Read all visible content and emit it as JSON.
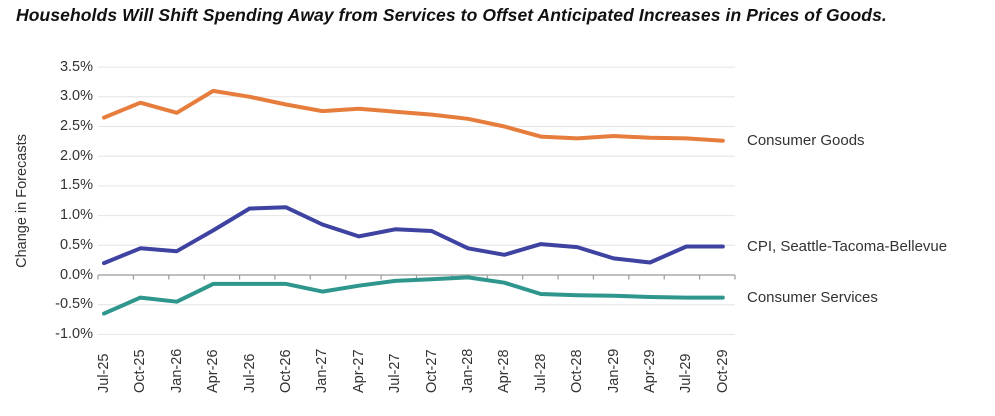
{
  "title": "Households Will Shift Spending Away from Services to Offset Anticipated Increases in Prices of Goods.",
  "chart_data": {
    "type": "line",
    "title": "Households Will Shift Spending Away from Services to Offset Anticipated Increases in Prices of Goods.",
    "xlabel": "",
    "ylabel": "Change in Forecasts",
    "ylim": [
      -1.0,
      3.5
    ],
    "ytick_step": 0.5,
    "ytick_labels": [
      "3.5%",
      "3.0%",
      "2.5%",
      "2.0%",
      "1.5%",
      "1.0%",
      "0.5%",
      "0.0%",
      "-0.5%",
      "-1.0%"
    ],
    "grid": true,
    "legend_position": "right-of-line-ends",
    "categories": [
      "Jul-25",
      "Oct-25",
      "Jan-26",
      "Apr-26",
      "Jul-26",
      "Oct-26",
      "Jan-27",
      "Apr-27",
      "Jul-27",
      "Oct-27",
      "Jan-28",
      "Apr-28",
      "Jul-28",
      "Oct-28",
      "Jan-29",
      "Apr-29",
      "Jul-29",
      "Oct-29"
    ],
    "series": [
      {
        "name": "Consumer Goods",
        "color": "#E67D3C",
        "values": [
          2.65,
          2.9,
          2.73,
          3.1,
          3.0,
          2.87,
          2.76,
          2.8,
          2.75,
          2.7,
          2.63,
          2.5,
          2.33,
          2.3,
          2.34,
          2.31,
          2.3,
          2.26
        ]
      },
      {
        "name": "CPI, Seattle-Tacoma-Bellevue",
        "color": "#3E42A0",
        "values": [
          0.2,
          0.45,
          0.4,
          0.75,
          1.12,
          1.14,
          0.85,
          0.65,
          0.77,
          0.74,
          0.45,
          0.34,
          0.52,
          0.47,
          0.28,
          0.21,
          0.48,
          0.48
        ]
      },
      {
        "name": "Consumer Services",
        "color": "#2E968C",
        "values": [
          -0.65,
          -0.38,
          -0.45,
          -0.15,
          -0.15,
          -0.15,
          -0.28,
          -0.18,
          -0.1,
          -0.07,
          -0.04,
          -0.13,
          -0.32,
          -0.34,
          -0.35,
          -0.37,
          -0.38,
          -0.38
        ]
      }
    ]
  },
  "colors": {
    "gridline": "#E4E4E4",
    "zero_axis": "#9B9B9B",
    "tick_text": "#333333",
    "title_text": "#111111"
  }
}
